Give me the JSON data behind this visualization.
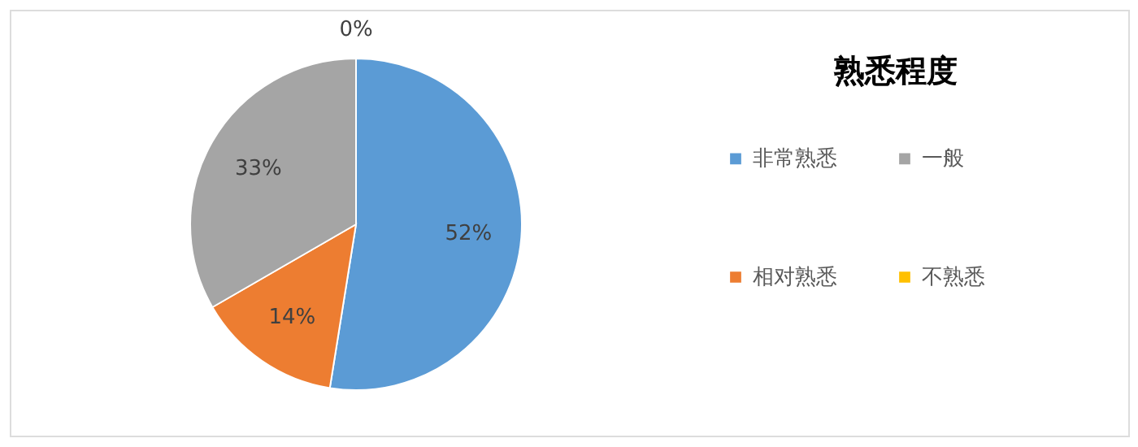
{
  "chart_data": {
    "type": "pie",
    "title": "熟悉程度",
    "categories": [
      "非常熟悉",
      "相对熟悉",
      "一般",
      "不熟悉"
    ],
    "values": [
      52,
      14,
      33,
      0
    ],
    "colors": [
      "#5b9bd5",
      "#ed7d31",
      "#a5a5a5",
      "#ffc000"
    ],
    "value_labels": [
      "52%",
      "14%",
      "33%",
      "0%"
    ],
    "legend": "right"
  }
}
